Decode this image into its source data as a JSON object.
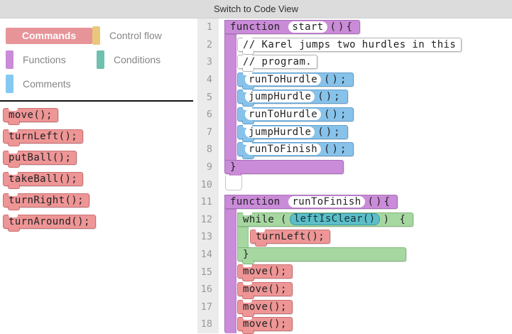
{
  "topbar": {
    "title": "Switch to Code View"
  },
  "palette": {
    "categories": [
      {
        "id": "commands",
        "label": "Commands",
        "color": "#e79499",
        "selected": true
      },
      {
        "id": "control-flow",
        "label": "Control flow",
        "color": "#e9c87c",
        "selected": false
      },
      {
        "id": "functions",
        "label": "Functions",
        "color": "#ca8bd8",
        "selected": false
      },
      {
        "id": "conditions",
        "label": "Conditions",
        "color": "#6fc0af",
        "selected": false
      },
      {
        "id": "comments",
        "label": "Comments",
        "color": "#85c9f2",
        "selected": false
      }
    ],
    "blocks": [
      {
        "label": "move();"
      },
      {
        "label": "turnLeft();"
      },
      {
        "label": "putBall();"
      },
      {
        "label": "takeBall();"
      },
      {
        "label": "turnRight();"
      },
      {
        "label": "turnAround();"
      }
    ]
  },
  "editor": {
    "lines": [
      {
        "n": 1,
        "kind": "func_header",
        "pre": "function",
        "name": "start",
        "post": "(){"
      },
      {
        "n": 2,
        "kind": "comment",
        "text": "// Karel jumps two hurdles in this"
      },
      {
        "n": 3,
        "kind": "comment",
        "text": "// program."
      },
      {
        "n": 4,
        "kind": "call",
        "name": "runToHurdle",
        "post": "();"
      },
      {
        "n": 5,
        "kind": "call",
        "name": "jumpHurdle",
        "post": "();"
      },
      {
        "n": 6,
        "kind": "call",
        "name": "runToHurdle",
        "post": "();"
      },
      {
        "n": 7,
        "kind": "call",
        "name": "jumpHurdle",
        "post": "();"
      },
      {
        "n": 8,
        "kind": "call",
        "name": "runToFinish",
        "post": "();"
      },
      {
        "n": 9,
        "kind": "func_footer",
        "text": "}"
      },
      {
        "n": 10,
        "kind": "slot"
      },
      {
        "n": 11,
        "kind": "func_header",
        "pre": "function",
        "name": "runToFinish",
        "post": "(){"
      },
      {
        "n": 12,
        "kind": "while_header",
        "kw": "while (",
        "cond": "leftIsClear()",
        "post": ") {"
      },
      {
        "n": 13,
        "kind": "stmt",
        "text": "turnLeft();",
        "indent": 3
      },
      {
        "n": 14,
        "kind": "while_footer",
        "text": "}"
      },
      {
        "n": 15,
        "kind": "stmt",
        "text": "move();"
      },
      {
        "n": 16,
        "kind": "stmt",
        "text": "move();"
      },
      {
        "n": 17,
        "kind": "stmt",
        "text": "move();"
      },
      {
        "n": 18,
        "kind": "stmt",
        "text": "move();"
      }
    ]
  },
  "colors": {
    "function_purple": "#ca8bd8",
    "call_blue": "#87c2ea",
    "command_pink": "#ee9596",
    "while_green": "#a7d7a1",
    "condition_teal": "#5cbec9",
    "comment_white": "#ffffff",
    "gutter_bg": "#ebebeb",
    "gutter_text": "#999999",
    "topbar_bg": "#dcdcdc",
    "divider_black": "#111111"
  }
}
